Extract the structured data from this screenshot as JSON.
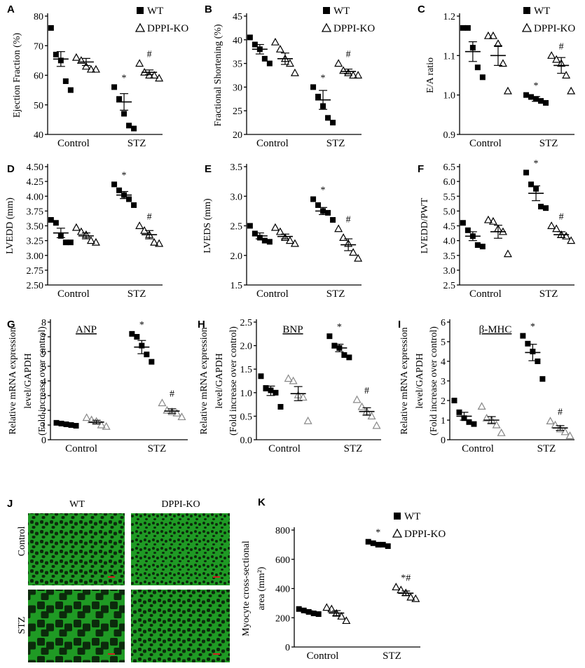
{
  "legend": {
    "wt": "WT",
    "ko": "DPPI-KO"
  },
  "categories": [
    "Control",
    "STZ"
  ],
  "panels": [
    {
      "letter": "A",
      "ylabel": "Ejection Fraction (%)",
      "ticks": [
        "40",
        "50",
        "60",
        "70",
        "80"
      ],
      "ylim": [
        40,
        80
      ],
      "legend": true,
      "gene": ""
    },
    {
      "letter": "B",
      "ylabel": "Fractional Shortening (%)",
      "ticks": [
        "20",
        "25",
        "30",
        "35",
        "40",
        "45"
      ],
      "ylim": [
        20,
        45
      ],
      "legend": true,
      "gene": ""
    },
    {
      "letter": "C",
      "ylabel": "E/A ratio",
      "ticks": [
        "0.9",
        "1.0",
        "1.1",
        "1.2"
      ],
      "ylim": [
        0.9,
        1.2
      ],
      "legend": true,
      "gene": ""
    },
    {
      "letter": "D",
      "ylabel": "LVEDD (mm)",
      "ticks": [
        "2.50",
        "2.75",
        "3.00",
        "3.25",
        "3.50",
        "3.75",
        "4.00",
        "4.25",
        "4.50"
      ],
      "ylim": [
        2.5,
        4.5
      ],
      "legend": false,
      "gene": ""
    },
    {
      "letter": "E",
      "ylabel": "LVEDS (mm)",
      "ticks": [
        "1.5",
        "2.0",
        "2.5",
        "3.0",
        "3.5"
      ],
      "ylim": [
        1.5,
        3.5
      ],
      "legend": false,
      "gene": ""
    },
    {
      "letter": "F",
      "ylabel": "LVEDD/PWT",
      "ticks": [
        "2.5",
        "3.0",
        "3.5",
        "4.0",
        "4.5",
        "5.0",
        "5.5",
        "6.0",
        "6.5"
      ],
      "ylim": [
        2.5,
        6.5
      ],
      "legend": false,
      "gene": ""
    },
    {
      "letter": "G",
      "ylabel_lines": [
        "Relative mRNA expression",
        "level/GAPDH",
        "(Fold increase over control)"
      ],
      "ticks": [
        "0",
        "1",
        "2",
        "3",
        "4",
        "5",
        "6",
        "7",
        "8"
      ],
      "ylim": [
        0,
        8
      ],
      "legend": false,
      "gene": "ANP"
    },
    {
      "letter": "H",
      "ylabel_lines": [
        "Relative mRNA expression",
        "level/GAPDH",
        "(Fold increase over control)"
      ],
      "ticks": [
        "0.0",
        "0.5",
        "1.0",
        "1.5",
        "2.0",
        "2.5"
      ],
      "ylim": [
        0,
        2.5
      ],
      "legend": false,
      "gene": "BNP"
    },
    {
      "letter": "I",
      "ylabel_lines": [
        "Relative mRNA expression",
        "level/GAPDH",
        "(Fold increase over control)"
      ],
      "ticks": [
        "0",
        "1",
        "2",
        "3",
        "4",
        "5",
        "6"
      ],
      "ylim": [
        0,
        6
      ],
      "legend": false,
      "gene": "β-MHC"
    },
    {
      "letter": "K",
      "ylabel_lines": [
        "Myocyte cross-sectional",
        "area (mm²)"
      ],
      "ticks": [
        "0",
        "200",
        "400",
        "600",
        "800"
      ],
      "ylim": [
        0,
        800
      ],
      "legend": true,
      "gene": ""
    }
  ],
  "micrographs": {
    "letter": "J",
    "col_labels": [
      "WT",
      "DPPI-KO"
    ],
    "row_labels": [
      "Control",
      "STZ"
    ]
  },
  "chart_data": [
    {
      "panel": "A",
      "type": "scatter",
      "ylabel": "Ejection Fraction (%)",
      "categories": [
        "Control",
        "STZ"
      ],
      "ylim": [
        40,
        80
      ],
      "series": [
        {
          "name": "WT",
          "values": [
            [
              76,
              67,
              65,
              58,
              55
            ],
            [
              56,
              52,
              47,
              43,
              42
            ]
          ],
          "mean": [
            65.5,
            51
          ],
          "sem": [
            2.5,
            2.8
          ]
        },
        {
          "name": "DPPI-KO",
          "values": [
            [
              66,
              65,
              63,
              62,
              62
            ],
            [
              64,
              61,
              60,
              60,
              59
            ]
          ],
          "mean": [
            64.5,
            61
          ],
          "sem": [
            1.2,
            0.8
          ]
        }
      ],
      "annotations": {
        "wt_stz": "*",
        "ko_stz": "#"
      }
    },
    {
      "panel": "B",
      "type": "scatter",
      "ylabel": "Fractional Shortening (%)",
      "categories": [
        "Control",
        "STZ"
      ],
      "ylim": [
        20,
        45
      ],
      "series": [
        {
          "name": "WT",
          "values": [
            [
              40.5,
              39,
              38,
              36,
              35
            ],
            [
              30,
              28,
              26,
              23.5,
              22.5
            ]
          ],
          "mean": [
            38,
            27.3
          ],
          "sem": [
            1.0,
            2.0
          ]
        },
        {
          "name": "DPPI-KO",
          "values": [
            [
              39.5,
              38,
              36,
              35,
              33
            ],
            [
              35,
              33.5,
              33,
              32.5,
              32.5
            ]
          ],
          "mean": [
            36,
            33.3
          ],
          "sem": [
            1.2,
            0.5
          ]
        }
      ],
      "annotations": {
        "wt_stz": "*",
        "ko_stz": "#"
      }
    },
    {
      "panel": "C",
      "type": "scatter",
      "ylabel": "E/A ratio",
      "categories": [
        "Control",
        "STZ"
      ],
      "ylim": [
        0.9,
        1.2
      ],
      "series": [
        {
          "name": "WT",
          "values": [
            [
              1.17,
              1.17,
              1.12,
              1.07,
              1.045
            ],
            [
              1.0,
              0.995,
              0.99,
              0.985,
              0.98
            ]
          ],
          "mean": [
            1.11,
            0.99
          ],
          "sem": [
            0.025,
            0.006
          ]
        },
        {
          "name": "DPPI-KO",
          "values": [
            [
              1.15,
              1.15,
              1.13,
              1.08,
              1.01
            ],
            [
              1.1,
              1.09,
              1.08,
              1.05,
              1.01
            ]
          ],
          "mean": [
            1.1,
            1.075
          ],
          "sem": [
            0.025,
            0.02
          ]
        }
      ],
      "annotations": {
        "wt_stz": "*",
        "ko_stz": "#"
      }
    },
    {
      "panel": "D",
      "type": "scatter",
      "ylabel": "LVEDD (mm)",
      "categories": [
        "Control",
        "STZ"
      ],
      "ylim": [
        2.5,
        4.5
      ],
      "series": [
        {
          "name": "WT",
          "values": [
            [
              3.6,
              3.55,
              3.33,
              3.22,
              3.22
            ],
            [
              4.2,
              4.1,
              4.02,
              3.95,
              3.85
            ]
          ],
          "mean": [
            3.38,
            4.02
          ],
          "sem": [
            0.08,
            0.06
          ]
        },
        {
          "name": "DPPI-KO",
          "values": [
            [
              3.47,
              3.4,
              3.35,
              3.25,
              3.22
            ],
            [
              3.5,
              3.42,
              3.35,
              3.22,
              3.2
            ]
          ],
          "mean": [
            3.33,
            3.35
          ],
          "sem": [
            0.05,
            0.07
          ]
        }
      ],
      "annotations": {
        "wt_stz": "*",
        "ko_stz": "#"
      }
    },
    {
      "panel": "E",
      "type": "scatter",
      "ylabel": "LVEDS (mm)",
      "categories": [
        "Control",
        "STZ"
      ],
      "ylim": [
        1.5,
        3.5
      ],
      "series": [
        {
          "name": "WT",
          "values": [
            [
              2.5,
              2.37,
              2.3,
              2.25,
              2.23
            ],
            [
              2.95,
              2.85,
              2.75,
              2.72,
              2.6
            ]
          ],
          "mean": [
            2.33,
            2.75
          ],
          "sem": [
            0.05,
            0.06
          ]
        },
        {
          "name": "DPPI-KO",
          "values": [
            [
              2.47,
              2.4,
              2.3,
              2.25,
              2.2
            ],
            [
              2.45,
              2.3,
              2.2,
              2.05,
              1.95
            ]
          ],
          "mean": [
            2.32,
            2.18
          ],
          "sem": [
            0.04,
            0.1
          ]
        }
      ],
      "annotations": {
        "wt_stz": "*",
        "ko_stz": "#"
      }
    },
    {
      "panel": "F",
      "type": "scatter",
      "ylabel": "LVEDD/PWT",
      "categories": [
        "Control",
        "STZ"
      ],
      "ylim": [
        2.5,
        6.5
      ],
      "series": [
        {
          "name": "WT",
          "values": [
            [
              4.6,
              4.35,
              4.15,
              3.85,
              3.8
            ],
            [
              6.3,
              5.9,
              5.75,
              5.15,
              5.1
            ]
          ],
          "mean": [
            4.15,
            5.6
          ],
          "sem": [
            0.15,
            0.25
          ]
        },
        {
          "name": "DPPI-KO",
          "values": [
            [
              4.7,
              4.65,
              4.4,
              4.3,
              3.55
            ],
            [
              4.5,
              4.4,
              4.2,
              4.15,
              4.0
            ]
          ],
          "mean": [
            4.3,
            4.2
          ],
          "sem": [
            0.22,
            0.1
          ]
        }
      ],
      "annotations": {
        "wt_stz": "*",
        "ko_stz": "#"
      }
    },
    {
      "panel": "G",
      "type": "scatter",
      "title": "ANP",
      "ylabel": "Relative mRNA expression level/GAPDH (Fold increase over control)",
      "categories": [
        "Control",
        "STZ"
      ],
      "ylim": [
        0,
        8
      ],
      "series": [
        {
          "name": "WT",
          "values": [
            [
              1.15,
              1.1,
              1.05,
              1.0,
              0.95
            ],
            [
              7.2,
              7.0,
              6.4,
              5.8,
              5.3
            ]
          ],
          "mean": [
            1.05,
            6.3
          ],
          "sem": [
            0.05,
            0.45
          ]
        },
        {
          "name": "DPPI-KO",
          "values": [
            [
              1.5,
              1.35,
              1.25,
              1.0,
              0.9
            ],
            [
              2.5,
              2.0,
              1.9,
              1.8,
              1.55
            ]
          ],
          "mean": [
            1.2,
            1.95
          ],
          "sem": [
            0.12,
            0.15
          ]
        }
      ],
      "annotations": {
        "wt_stz": "*",
        "ko_stz": "#"
      }
    },
    {
      "panel": "H",
      "type": "scatter",
      "title": "BNP",
      "ylabel": "Relative mRNA expression level/GAPDH (Fold increase over control)",
      "categories": [
        "Control",
        "STZ"
      ],
      "ylim": [
        0,
        2.5
      ],
      "series": [
        {
          "name": "WT",
          "values": [
            [
              1.35,
              1.1,
              1.05,
              1.0,
              0.7
            ],
            [
              2.2,
              2.0,
              1.95,
              1.8,
              1.75
            ]
          ],
          "mean": [
            1.04,
            1.95
          ],
          "sem": [
            0.1,
            0.08
          ]
        },
        {
          "name": "DPPI-KO",
          "values": [
            [
              1.3,
              1.25,
              0.95,
              0.9,
              0.4
            ],
            [
              0.85,
              0.7,
              0.6,
              0.5,
              0.3
            ]
          ],
          "mean": [
            0.98,
            0.6
          ],
          "sem": [
            0.15,
            0.08
          ]
        }
      ],
      "annotations": {
        "wt_stz": "*",
        "ko_stz": "#"
      }
    },
    {
      "panel": "I",
      "type": "scatter",
      "title": "β-MHC",
      "ylabel": "Relative mRNA expression level/GAPDH (Fold increase over control)",
      "categories": [
        "Control",
        "STZ"
      ],
      "ylim": [
        0,
        6
      ],
      "series": [
        {
          "name": "WT",
          "values": [
            [
              2.0,
              1.4,
              1.1,
              0.9,
              0.8
            ],
            [
              5.3,
              4.9,
              4.5,
              4.0,
              3.1
            ]
          ],
          "mean": [
            1.2,
            4.45
          ],
          "sem": [
            0.2,
            0.42
          ]
        },
        {
          "name": "DPPI-KO",
          "values": [
            [
              1.7,
              1.1,
              1.0,
              0.75,
              0.35
            ],
            [
              0.95,
              0.75,
              0.55,
              0.4,
              0.2
            ]
          ],
          "mean": [
            1.0,
            0.6
          ],
          "sem": [
            0.18,
            0.12
          ]
        }
      ],
      "annotations": {
        "wt_stz": "*",
        "ko_stz": "#"
      }
    },
    {
      "panel": "K",
      "type": "scatter",
      "ylabel": "Myocyte cross-sectional area (mm²)",
      "categories": [
        "Control",
        "STZ"
      ],
      "ylim": [
        0,
        800
      ],
      "series": [
        {
          "name": "WT",
          "values": [
            [
              260,
              250,
              240,
              230,
              225
            ],
            [
              720,
              710,
              700,
              700,
              690
            ]
          ],
          "mean": [
            240,
            705
          ],
          "sem": [
            8,
            6
          ]
        },
        {
          "name": "DPPI-KO",
          "values": [
            [
              270,
              260,
              230,
              210,
              180
            ],
            [
              410,
              390,
              370,
              340,
              330
            ]
          ],
          "mean": [
            232,
            368
          ],
          "sem": [
            17,
            15
          ]
        }
      ],
      "annotations": {
        "wt_stz": "*",
        "ko_stz": "*#"
      }
    }
  ],
  "colors": {
    "marker": "#000000",
    "marker_light": "#888888",
    "tissue": "#1f9a24",
    "tissue_dark": "#0c2a0c",
    "scalebar": "#d12020"
  }
}
